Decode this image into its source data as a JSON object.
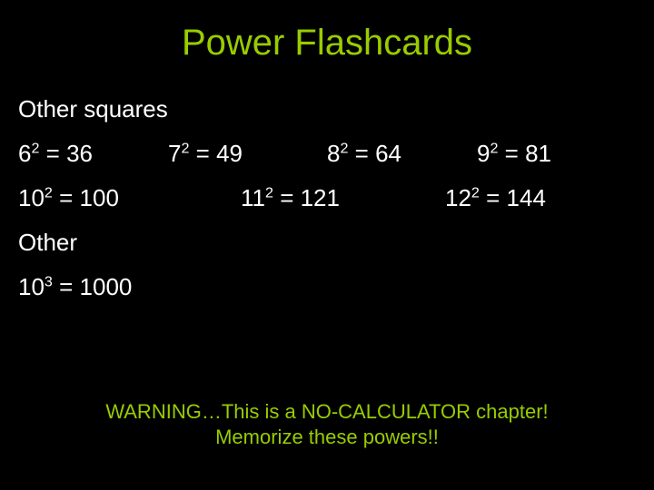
{
  "colors": {
    "background": "#000000",
    "title": "#99cc00",
    "body_text": "#ffffff",
    "warning": "#99cc00"
  },
  "typography": {
    "title_fontsize": 40,
    "heading_fontsize": 26,
    "body_fontsize": 26,
    "warning_fontsize": 22,
    "font_family": "Arial"
  },
  "title": "Power Flashcards",
  "section1_heading": "Other squares",
  "row1": {
    "c1_base": "6",
    "c1_exp": "2",
    "c1_eq": " = 36",
    "c2_base": "7",
    "c2_exp": "2",
    "c2_eq": " = 49",
    "c3_base": "8",
    "c3_exp": "2",
    "c3_eq": " = 64",
    "c4_base": "9",
    "c4_exp": "2",
    "c4_eq": " = 81"
  },
  "row2": {
    "c1_base": "10",
    "c1_exp": "2",
    "c1_eq": " = 100",
    "c2_base": "11",
    "c2_exp": "2",
    "c2_eq": " = 121",
    "c3_base": "12",
    "c3_exp": "2",
    "c3_eq": " = 144"
  },
  "section2_heading": "Other",
  "row3": {
    "base": "10",
    "exp": "3",
    "eq": " = 1000"
  },
  "warning_line1": "WARNING…This is a NO-CALCULATOR chapter!",
  "warning_line2": "Memorize these powers!!"
}
